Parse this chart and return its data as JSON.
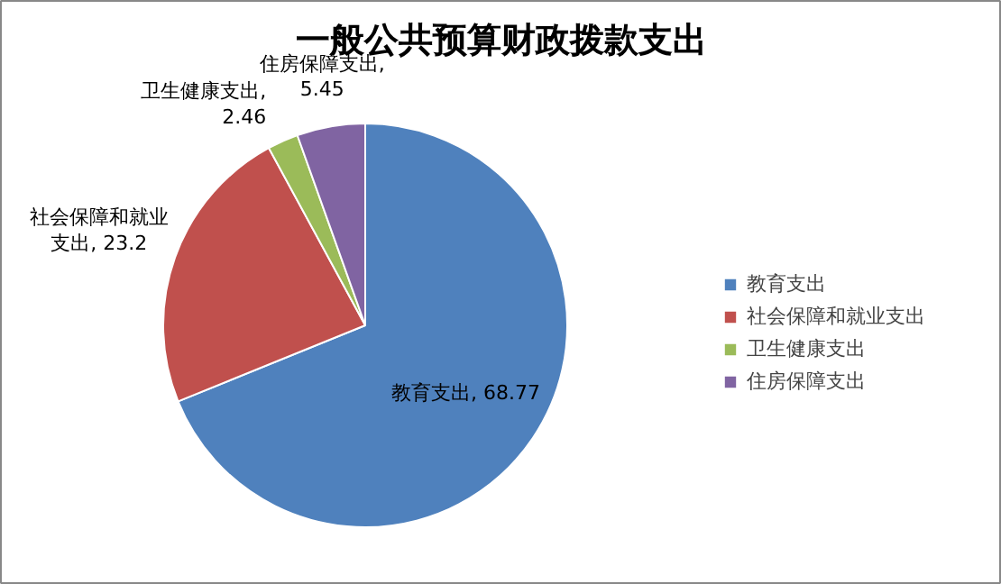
{
  "chart_data": {
    "type": "pie",
    "title": "一般公共预算财政拨款支出",
    "categories": [
      "教育支出",
      "社会保障和就业支出",
      "卫生健康支出",
      "住房保障支出"
    ],
    "values": [
      68.77,
      23.2,
      2.46,
      5.45
    ],
    "colors": [
      "#4f81bd",
      "#c0504d",
      "#9bbb59",
      "#8064a2"
    ],
    "value_labels": [
      "教育支出, 68.77",
      "社会保障和就业支出, 23.2",
      "卫生健康支出, 2.46",
      "住房保障支出, 5.45"
    ],
    "legend": "right"
  }
}
